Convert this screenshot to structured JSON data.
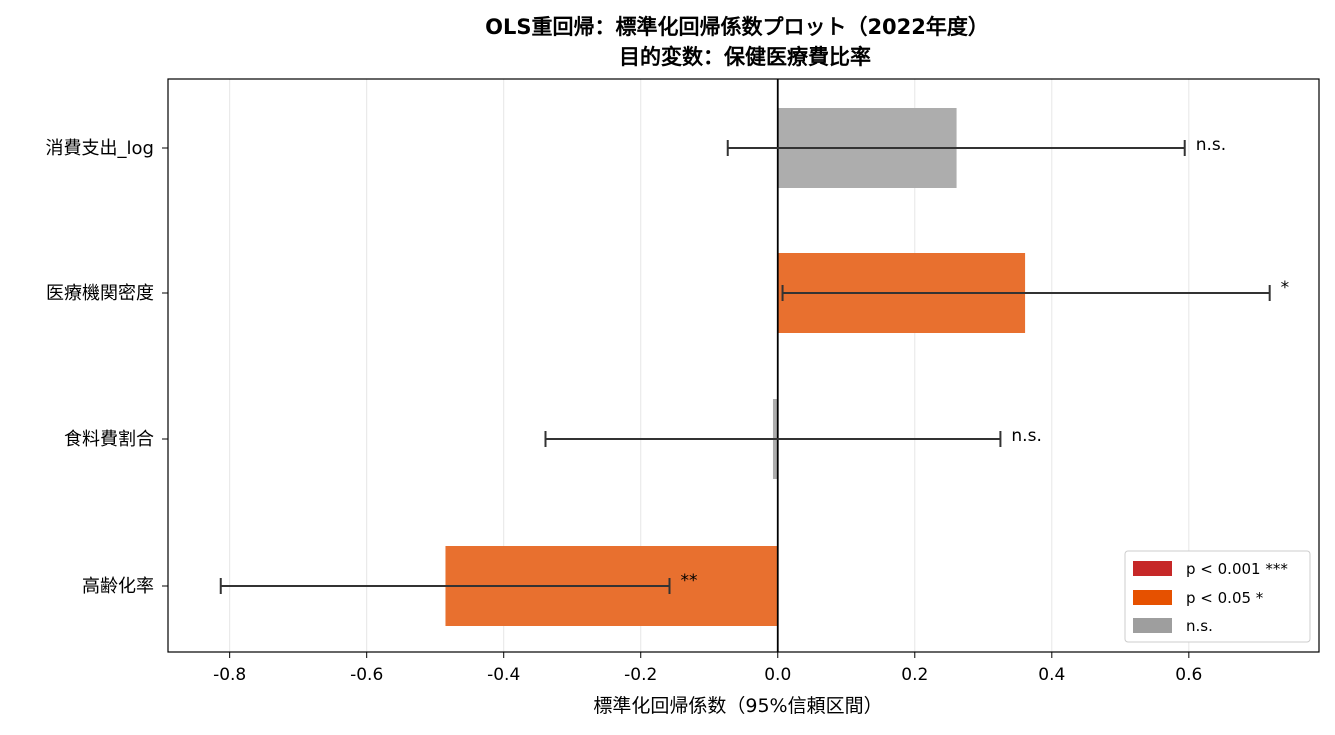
{
  "chart_data": {
    "type": "bar",
    "orientation": "horizontal",
    "title_lines": [
      "OLS重回帰：標準化回帰係数プロット（2022年度）",
      "目的変数：保健医療費比率"
    ],
    "xlabel": "標準化回帰係数（95%信頼区間）",
    "xlim": [
      -0.89,
      0.79
    ],
    "xticks": [
      -0.8,
      -0.6,
      -0.4,
      -0.2,
      0.0,
      0.2,
      0.4,
      0.6
    ],
    "xtick_labels": [
      "-0.8",
      "-0.6",
      "-0.4",
      "-0.2",
      "0.0",
      "0.2",
      "0.4",
      "0.6"
    ],
    "grid": "x",
    "zero_line": true,
    "categories": [
      "消費支出_log",
      "医療機関密度",
      "食料費割合",
      "高齢化率"
    ],
    "coefficients": [
      0.261,
      0.361,
      -0.007,
      -0.485
    ],
    "ci_low": [
      -0.073,
      0.007,
      -0.339,
      -0.813
    ],
    "ci_high": [
      0.594,
      0.718,
      0.325,
      -0.158
    ],
    "significance": [
      "n.s.",
      "*",
      "n.s.",
      "**"
    ],
    "bar_colors": [
      "#adadad",
      "#e8702f",
      "#adadad",
      "#e8702f"
    ],
    "legend": {
      "position": "lower-right",
      "entries": [
        {
          "label": "p < 0.001 ***",
          "color": "#c62828"
        },
        {
          "label": "p < 0.05  *",
          "color": "#e65100"
        },
        {
          "label": "n.s.",
          "color": "#9e9e9e"
        }
      ]
    }
  }
}
